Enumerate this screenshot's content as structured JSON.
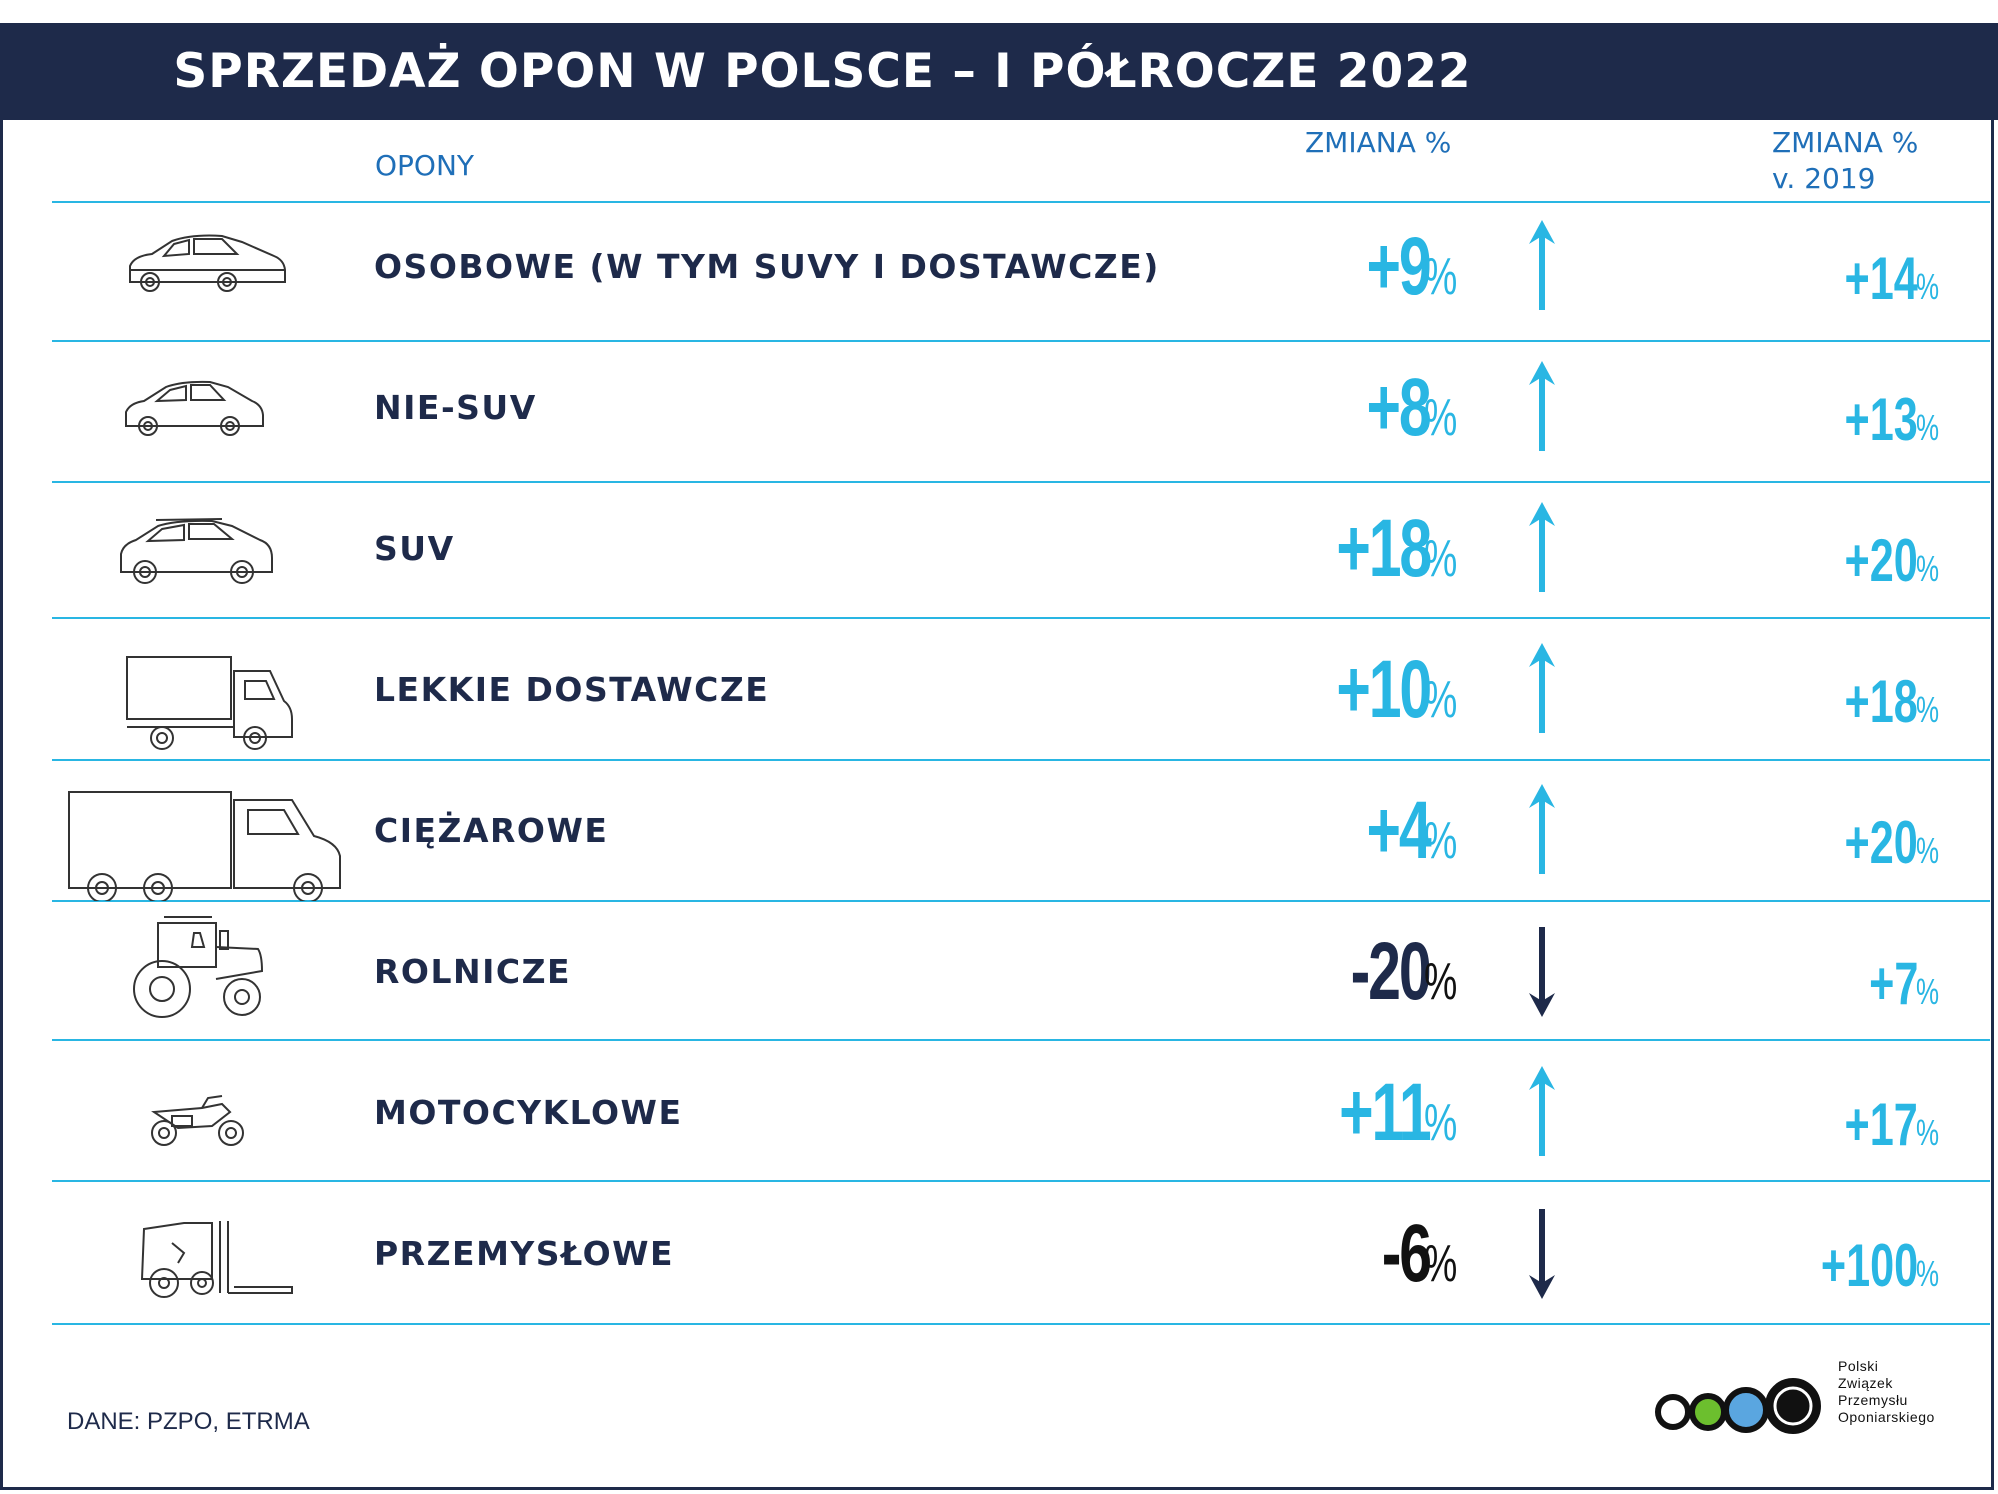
{
  "title": "SPRZEDAŻ OPON W POLSCE – I PÓŁROCZE 2022",
  "headers": {
    "tires": "OPONY",
    "change": "ZMIANA %",
    "change_vs_2019_line1": "ZMIANA %",
    "change_vs_2019_line2": "v. 2019"
  },
  "rows": [
    {
      "label": "OSOBOWE (W TYM SUVY I DOSTAWCZE)",
      "change": "+9",
      "change_unit": "%",
      "direction": "up",
      "change_vs_2019": "+14",
      "change_vs_2019_unit": "%",
      "icon": "car-icon"
    },
    {
      "label": "NIE-SUV",
      "change": "+8",
      "change_unit": "%",
      "direction": "up",
      "change_vs_2019": "+13",
      "change_vs_2019_unit": "%",
      "icon": "car-icon"
    },
    {
      "label": "SUV",
      "change": "+18",
      "change_unit": "%",
      "direction": "up",
      "change_vs_2019": "+20",
      "change_vs_2019_unit": "%",
      "icon": "suv-icon"
    },
    {
      "label": "LEKKIE DOSTAWCZE",
      "change": "+10",
      "change_unit": "%",
      "direction": "up",
      "change_vs_2019": "+18",
      "change_vs_2019_unit": "%",
      "icon": "van-icon"
    },
    {
      "label": "CIĘŻAROWE",
      "change": "+4",
      "change_unit": "%",
      "direction": "up",
      "change_vs_2019": "+20",
      "change_vs_2019_unit": "%",
      "icon": "truck-icon"
    },
    {
      "label": "ROLNICZE",
      "change": "-20",
      "change_unit": "%",
      "direction": "down",
      "change_vs_2019": "+7",
      "change_vs_2019_unit": "%",
      "icon": "tractor-icon"
    },
    {
      "label": "MOTOCYKLOWE",
      "change": "+11",
      "change_unit": "%",
      "direction": "up",
      "change_vs_2019": "+17",
      "change_vs_2019_unit": "%",
      "icon": "motorcycle-icon"
    },
    {
      "label": "PRZEMYSŁOWE",
      "change": "-6",
      "change_unit": "%",
      "direction": "down",
      "change_vs_2019": "+100",
      "change_vs_2019_unit": "%",
      "icon": "forklift-icon"
    }
  ],
  "source": "DANE: PZPO, ETRMA",
  "logo": {
    "line1": "Polski",
    "line2": "Związek",
    "line3": "Przemysłu",
    "line4": "Oponiarskiego"
  },
  "colors": {
    "navy": "#1e2a4a",
    "cyan": "#29b6e3",
    "header_blue": "#1f6fb8",
    "logo_green": "#6cbf2e",
    "logo_blue": "#5aa6e0"
  }
}
